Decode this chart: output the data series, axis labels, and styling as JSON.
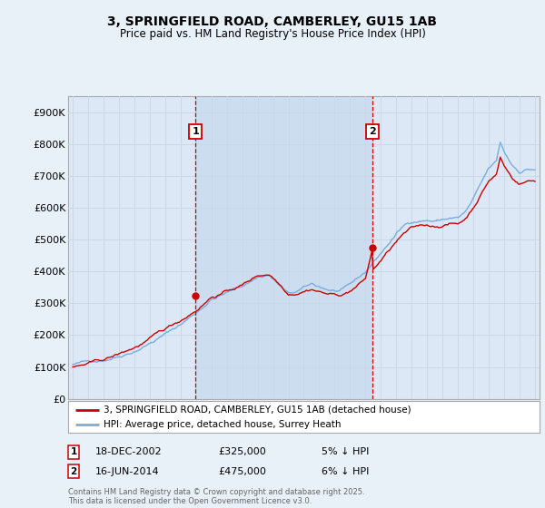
{
  "title": "3, SPRINGFIELD ROAD, CAMBERLEY, GU15 1AB",
  "subtitle": "Price paid vs. HM Land Registry's House Price Index (HPI)",
  "background_color": "#e8f0f8",
  "plot_bg_color": "#dce8f5",
  "plot_bg_between_color": "#cdddf0",
  "grid_color": "#c8d8e8",
  "ylim": [
    0,
    950000
  ],
  "yticks": [
    0,
    100000,
    200000,
    300000,
    400000,
    500000,
    600000,
    700000,
    800000,
    900000
  ],
  "ytick_labels": [
    "£0",
    "£100K",
    "£200K",
    "£300K",
    "£400K",
    "£500K",
    "£600K",
    "£700K",
    "£800K",
    "£900K"
  ],
  "line_color_property": "#cc0000",
  "line_color_hpi": "#7aacdc",
  "legend_label_property": "3, SPRINGFIELD ROAD, CAMBERLEY, GU15 1AB (detached house)",
  "legend_label_hpi": "HPI: Average price, detached house, Surrey Heath",
  "sale1_date": "18-DEC-2002",
  "sale1_price": "£325,000",
  "sale1_pct": "5% ↓ HPI",
  "sale2_date": "16-JUN-2014",
  "sale2_price": "£475,000",
  "sale2_pct": "6% ↓ HPI",
  "vline1_x": 2002.96,
  "vline2_x": 2014.46,
  "sale1_y": 325000,
  "sale2_y": 475000,
  "footer": "Contains HM Land Registry data © Crown copyright and database right 2025.\nThis data is licensed under the Open Government Licence v3.0.",
  "xlim": [
    1994.7,
    2025.3
  ],
  "xticks": [
    1995,
    1996,
    1997,
    1998,
    1999,
    2000,
    2001,
    2002,
    2003,
    2004,
    2005,
    2006,
    2007,
    2008,
    2009,
    2010,
    2011,
    2012,
    2013,
    2014,
    2015,
    2016,
    2017,
    2018,
    2019,
    2020,
    2021,
    2022,
    2023,
    2024,
    2025
  ]
}
